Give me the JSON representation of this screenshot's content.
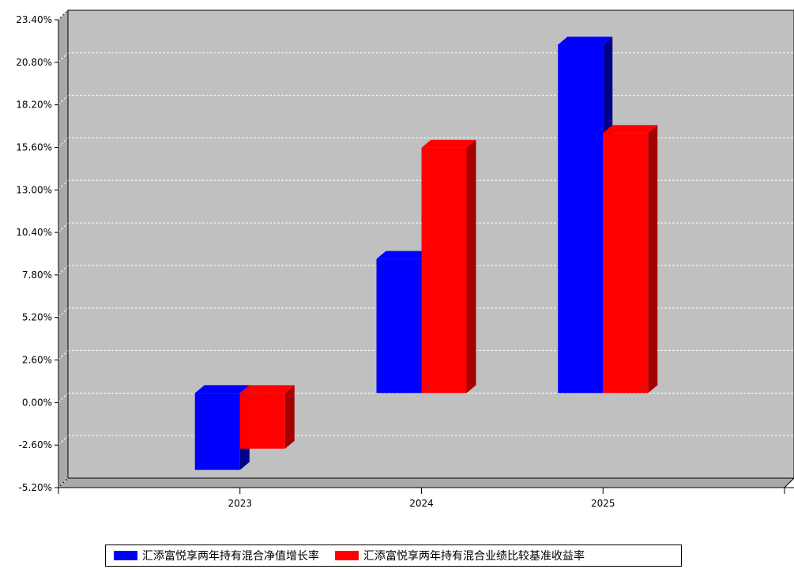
{
  "chart_data": {
    "type": "bar",
    "categories": [
      "2023",
      "2024",
      "2025"
    ],
    "series": [
      {
        "name": "汇添富悦享两年持有混合净值增长率",
        "color": "#0000ff",
        "values": [
          -4.7,
          8.2,
          21.3
        ]
      },
      {
        "name": "汇添富悦享两年持有混合业绩比较基准收益率",
        "color": "#ff0000",
        "values": [
          -3.4,
          15.0,
          15.9
        ]
      }
    ],
    "ylim": [
      -5.2,
      23.4
    ],
    "yticks": [
      "23.40%",
      "20.80%",
      "18.20%",
      "15.60%",
      "13.00%",
      "10.40%",
      "7.80%",
      "5.20%",
      "2.60%",
      "0.00%",
      "-2.60%",
      "-5.20%"
    ],
    "ytick_values": [
      23.4,
      20.8,
      18.2,
      15.6,
      13.0,
      10.4,
      7.8,
      5.2,
      2.6,
      0.0,
      -2.6,
      -5.2
    ],
    "grid": true,
    "legend_position": "bottom",
    "background": "#c0c0c0"
  }
}
